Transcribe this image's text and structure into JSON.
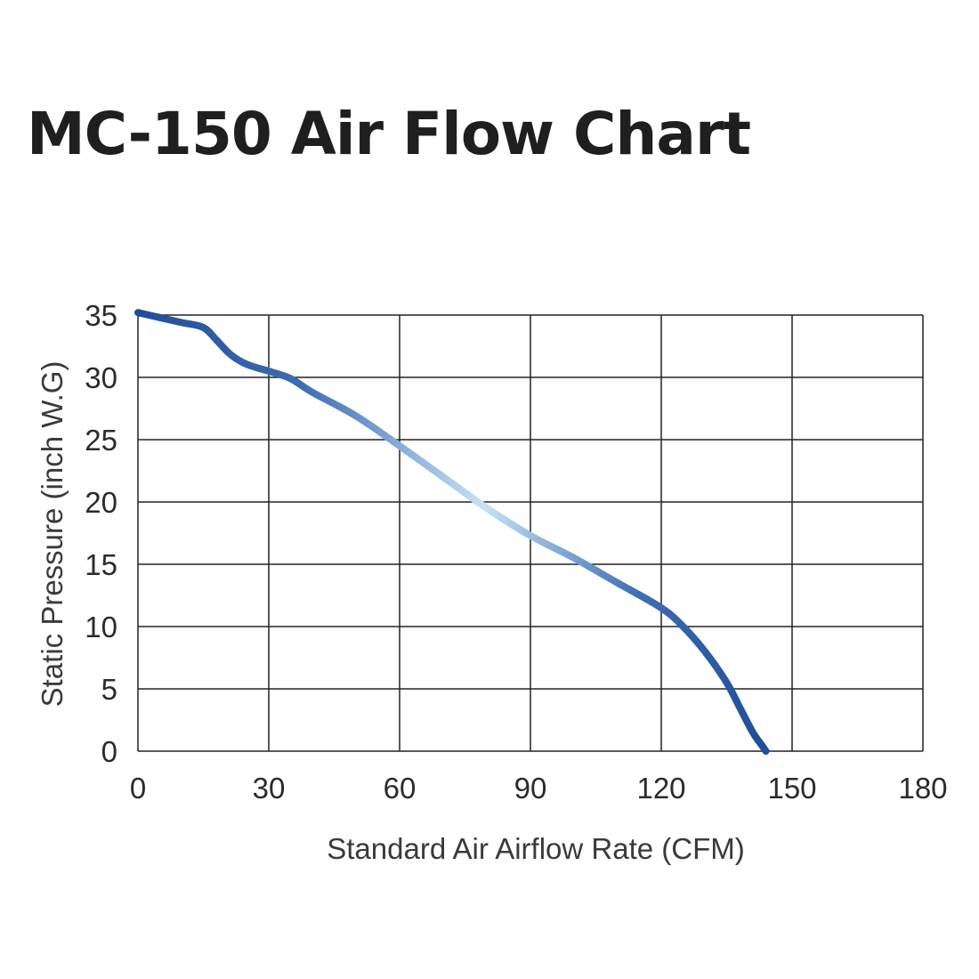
{
  "title": "MC-150 Air Flow Chart",
  "chart_data": {
    "type": "line",
    "title": "MC-150 Air Flow Chart",
    "xlabel": "Standard Air Airflow Rate (CFM)",
    "ylabel": "Static Pressure (inch W.G)",
    "xlim": [
      0,
      180
    ],
    "ylim": [
      0,
      35
    ],
    "xticks": [
      0,
      30,
      60,
      90,
      120,
      150,
      180
    ],
    "yticks": [
      0,
      5,
      10,
      15,
      20,
      25,
      30,
      35
    ],
    "grid": true,
    "series": [
      {
        "x": [
          0,
          5,
          10,
          15,
          18,
          21,
          24,
          27,
          30,
          35,
          40,
          50,
          60,
          70,
          80,
          90,
          100,
          110,
          120,
          125,
          130,
          135,
          138,
          141,
          143,
          144
        ],
        "values": [
          35.2,
          34.8,
          34.4,
          34.0,
          33.0,
          31.9,
          31.2,
          30.8,
          30.5,
          29.9,
          28.8,
          26.9,
          24.5,
          22.0,
          19.5,
          17.3,
          15.5,
          13.5,
          11.5,
          10.0,
          8.0,
          5.5,
          3.5,
          1.5,
          0.5,
          0
        ],
        "color_stops": [
          "#1f4e97",
          "#3e6db3",
          "#c5e2f5",
          "#3e6db3",
          "#1f4e97"
        ]
      }
    ]
  }
}
